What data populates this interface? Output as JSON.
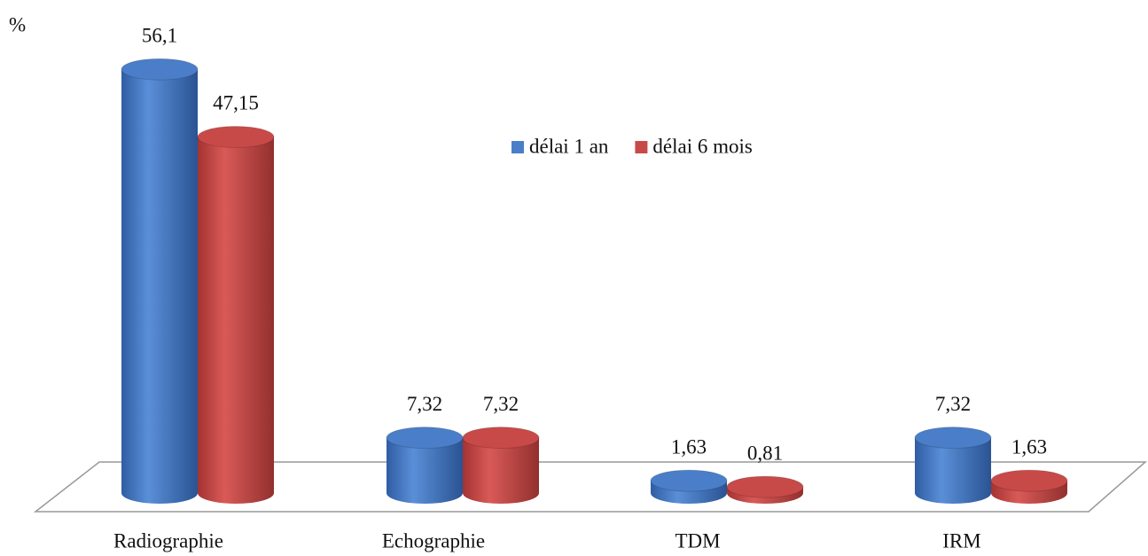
{
  "chart_data": {
    "type": "bar3d",
    "y_label": "%",
    "categories": [
      "Radiographie",
      "Echographie",
      "TDM",
      "IRM"
    ],
    "series": [
      {
        "name": "délai 1 an",
        "color": "#4a7ec8",
        "values": [
          56.1,
          7.32,
          1.63,
          7.32
        ],
        "value_labels": [
          "56,1",
          "7,32",
          "1,63",
          "7,32"
        ]
      },
      {
        "name": "délai 6 mois",
        "color": "#c84a48",
        "values": [
          47.15,
          7.32,
          0.81,
          1.63
        ],
        "value_labels": [
          "47,15",
          "7,32",
          "0,81",
          "1,63"
        ]
      }
    ],
    "ylim": [
      0,
      60
    ]
  }
}
